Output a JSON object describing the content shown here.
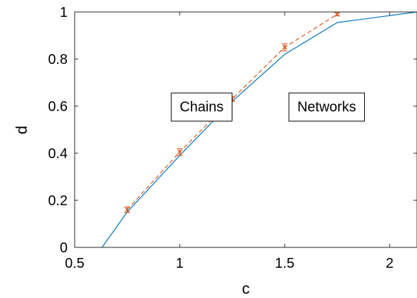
{
  "chart_data": {
    "type": "line",
    "xlabel": "c",
    "ylabel": "d",
    "xlim": [
      0.5,
      2.13
    ],
    "ylim": [
      0,
      1
    ],
    "x_ticks": [
      0.5,
      1,
      1.5,
      2
    ],
    "x_tick_labels": [
      "0.5",
      "1",
      "1.5",
      "2"
    ],
    "y_ticks": [
      0,
      0.2,
      0.4,
      0.6,
      0.8,
      1
    ],
    "y_tick_labels": [
      "0",
      "0.2",
      "0.4",
      "0.6",
      "0.8",
      "1"
    ],
    "grid": false,
    "series": [
      {
        "style": "solid",
        "color": "#0072bd",
        "x": [
          0.63,
          0.75,
          1.0,
          1.25,
          1.5,
          1.75,
          2.13
        ],
        "y": [
          0.0,
          0.15,
          0.39,
          0.62,
          0.82,
          0.955,
          1.0
        ]
      },
      {
        "style": "dashed",
        "color": "#d95319",
        "marker": "x",
        "x": [
          0.75,
          1.0,
          1.25,
          1.5,
          1.75
        ],
        "y": [
          0.16,
          0.405,
          0.63,
          0.85,
          0.99
        ],
        "err": [
          0.012,
          0.015,
          0.01,
          0.015,
          0.006
        ]
      }
    ],
    "annotations": [
      {
        "text": "Chains",
        "x": 0.96,
        "y": 0.615
      },
      {
        "text": "Networks",
        "x": 1.52,
        "y": 0.615
      }
    ]
  }
}
